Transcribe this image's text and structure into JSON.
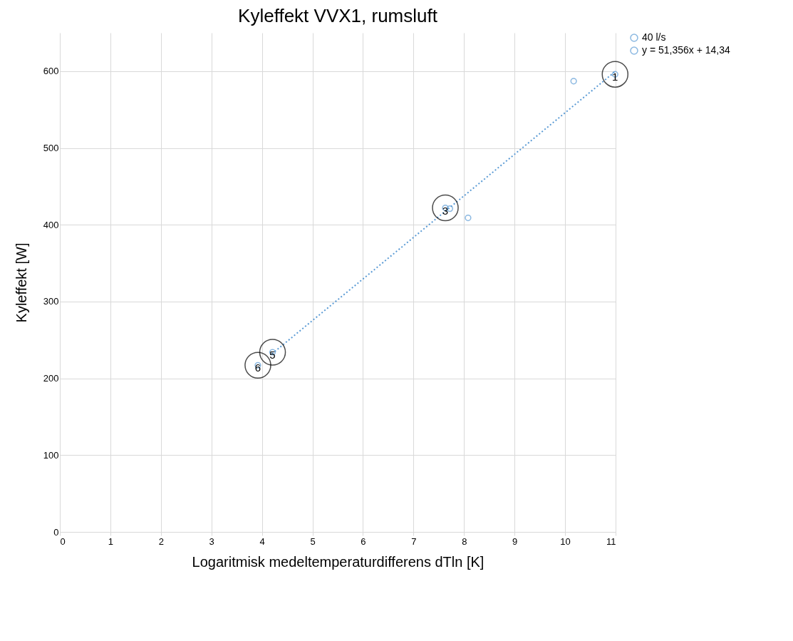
{
  "chart_data": {
    "type": "scatter",
    "title": "Kyleffekt VVX1, rumsluft",
    "xlabel": "Logaritmisk medeltemperaturdifferens  dTln [K]",
    "ylabel": "Kyleffekt  [W]",
    "xlim": [
      0,
      11
    ],
    "ylim": [
      0,
      650
    ],
    "xticks": [
      0,
      1,
      2,
      3,
      4,
      5,
      6,
      7,
      8,
      9,
      10,
      11
    ],
    "yticks": [
      0,
      100,
      200,
      300,
      400,
      500,
      600
    ],
    "grid": true,
    "legend": "right",
    "marker": "circle",
    "series": [
      {
        "name": "40 l/s",
        "color": "#5b9bd5",
        "x": [
          10.99,
          10.17,
          7.63,
          7.72,
          8.08,
          4.21,
          3.92
        ],
        "values": [
          596,
          587,
          422,
          421,
          409,
          234,
          217
        ]
      },
      {
        "name": "y = 51,356x + 14,34",
        "type": "line",
        "line_style": "dotted",
        "color": "#5b9bd5",
        "x": [
          4.2,
          11
        ],
        "values": [
          232,
          600
        ]
      }
    ],
    "annotations": [
      {
        "text": "1",
        "x": 10.99,
        "y": 596
      },
      {
        "text": "3",
        "x": 7.63,
        "y": 422
      },
      {
        "text": "5",
        "x": 4.21,
        "y": 234
      },
      {
        "text": "6",
        "x": 3.92,
        "y": 217
      }
    ]
  }
}
